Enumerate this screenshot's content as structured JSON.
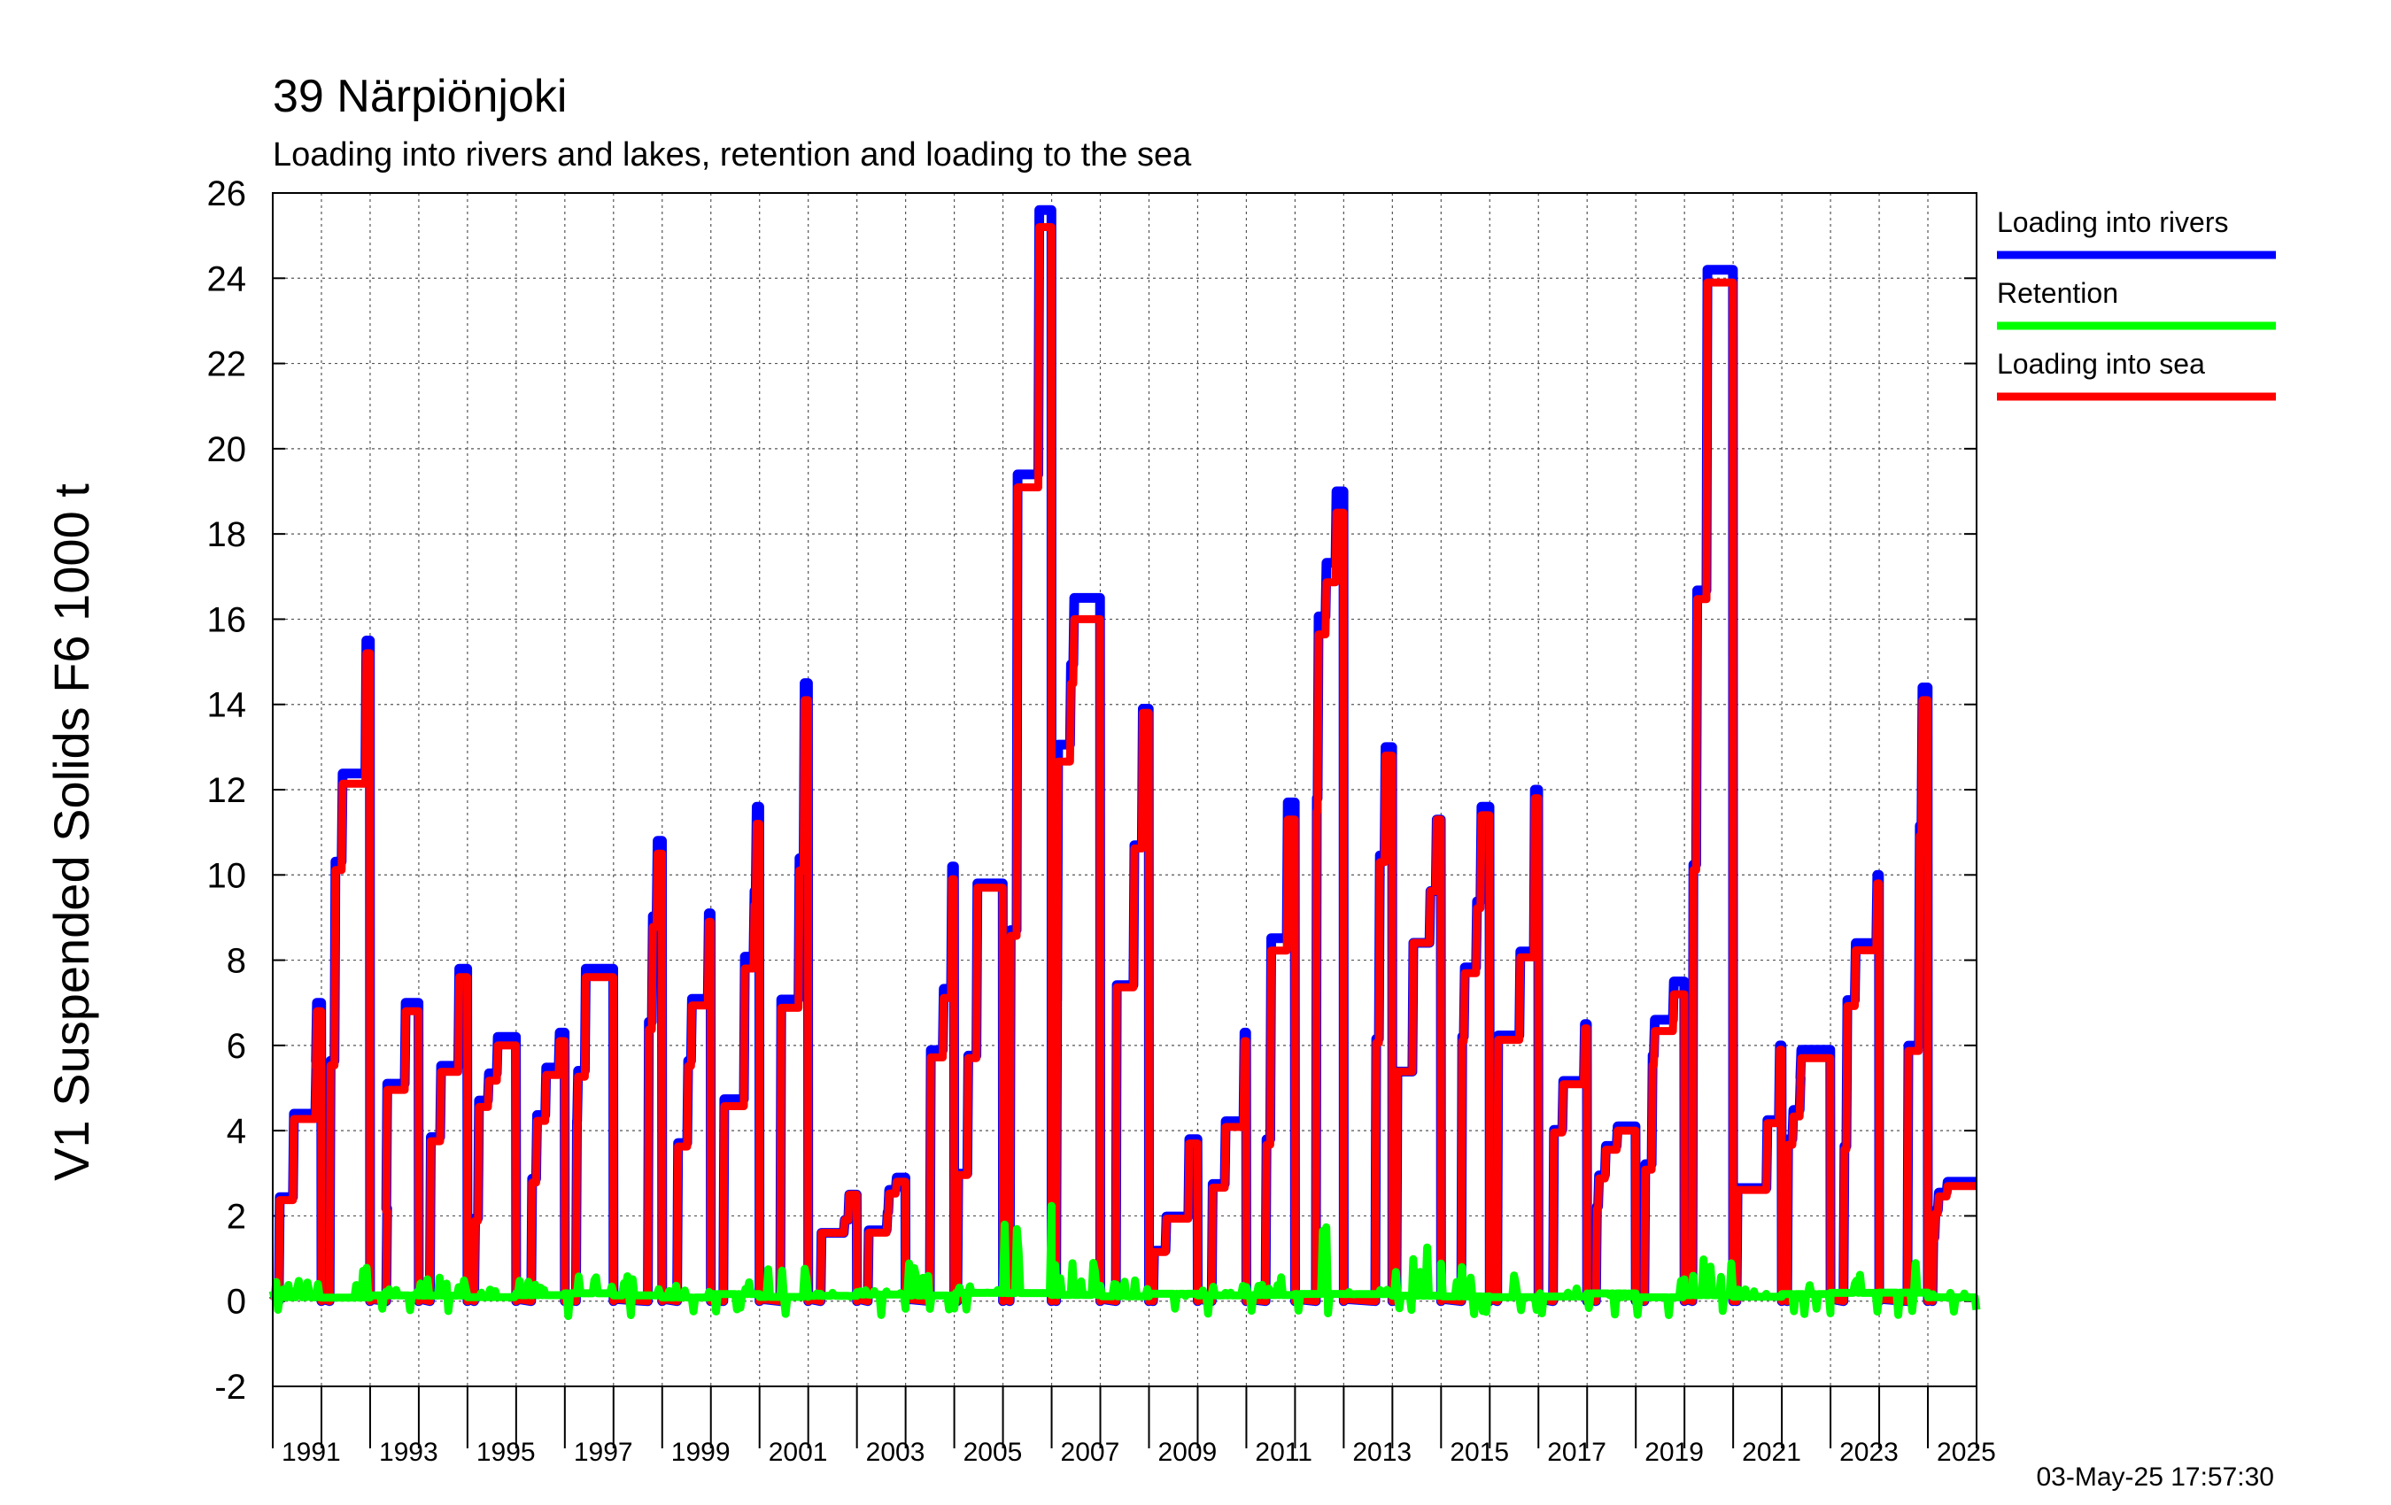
{
  "chart_data": {
    "type": "line",
    "title": "39 Närpiönjoki",
    "subtitle": "Loading into rivers and lakes, retention and loading to the sea",
    "ylabel": "V1 Suspended Solids F6 1000 t",
    "xlabel": "",
    "xlim": [
      1990,
      2025
    ],
    "ylim": [
      -2,
      26
    ],
    "yticks": [
      -2,
      0,
      2,
      4,
      6,
      8,
      10,
      12,
      14,
      16,
      18,
      20,
      22,
      24,
      26
    ],
    "xtick_labels": [
      "1991",
      "1993",
      "1995",
      "1997",
      "1999",
      "2001",
      "2003",
      "2005",
      "2007",
      "2009",
      "2011",
      "2013",
      "2015",
      "2017",
      "2019",
      "2021",
      "2023",
      "2025"
    ],
    "grid": true,
    "legend_position": "right",
    "timestamp": "03-May-25 17:57:30",
    "series": [
      {
        "name": "Loading into rivers",
        "color": "#0000ff",
        "annual_max": [
          7.0,
          15.5,
          7.0,
          7.8,
          6.2,
          6.3,
          7.8,
          10.8,
          9.1,
          11.6,
          14.5,
          2.5,
          2.9,
          10.2,
          9.8,
          25.6,
          16.5,
          13.9,
          3.8,
          6.3,
          11.7,
          19.0,
          13.0,
          11.3,
          11.6,
          12.0,
          6.5,
          4.1,
          7.5,
          24.2,
          6.0,
          5.9,
          10.0,
          14.4,
          2.8
        ]
      },
      {
        "name": "Retention",
        "color": "#00ff00",
        "annual_max": [
          0.5,
          0.8,
          0.3,
          0.6,
          0.3,
          0.5,
          0.6,
          0.6,
          0.4,
          0.5,
          0.9,
          0.2,
          0.3,
          1.0,
          0.4,
          2.4,
          1.0,
          0.5,
          0.2,
          0.4,
          0.6,
          2.5,
          0.3,
          1.3,
          0.9,
          0.7,
          0.3,
          0.2,
          0.7,
          1.1,
          0.3,
          0.4,
          0.8,
          1.0,
          0.2
        ]
      },
      {
        "name": "Loading into sea",
        "color": "#ff0000",
        "annual_max": [
          6.8,
          15.2,
          6.8,
          7.6,
          6.0,
          6.1,
          7.6,
          10.5,
          8.9,
          11.2,
          14.1,
          2.5,
          2.8,
          9.9,
          9.7,
          25.2,
          16.0,
          13.8,
          3.7,
          6.1,
          11.3,
          18.5,
          12.8,
          11.3,
          11.4,
          11.8,
          6.4,
          4.0,
          7.2,
          23.9,
          5.9,
          5.7,
          9.8,
          14.1,
          2.7
        ]
      }
    ]
  }
}
